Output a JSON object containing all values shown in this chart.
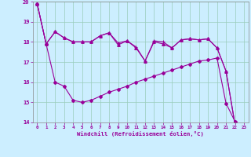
{
  "xlabel": "Windchill (Refroidissement éolien,°C)",
  "background_color": "#cceeff",
  "grid_color": "#99ccbb",
  "line_color": "#990099",
  "xlim": [
    -0.5,
    23.5
  ],
  "ylim": [
    14,
    20
  ],
  "yticks": [
    14,
    15,
    16,
    17,
    18,
    19,
    20
  ],
  "xticks": [
    0,
    1,
    2,
    3,
    4,
    5,
    6,
    7,
    8,
    9,
    10,
    11,
    12,
    13,
    14,
    15,
    16,
    17,
    18,
    19,
    20,
    21,
    22,
    23
  ],
  "series1_x": [
    0,
    1,
    2,
    3,
    4,
    5,
    6,
    7,
    8,
    9,
    10,
    11,
    12,
    13,
    14,
    15,
    16,
    17,
    18,
    19,
    20,
    21,
    22,
    23
  ],
  "series1_y": [
    19.9,
    17.9,
    18.5,
    18.2,
    18.0,
    18.0,
    18.0,
    18.3,
    18.45,
    17.95,
    18.05,
    17.75,
    17.05,
    18.05,
    18.0,
    17.7,
    18.1,
    18.15,
    18.1,
    18.15,
    17.7,
    16.55,
    13.9,
    13.7
  ],
  "series2_x": [
    0,
    1,
    2,
    3,
    4,
    5,
    6,
    7,
    8,
    9,
    10,
    11,
    12,
    13,
    14,
    15,
    16,
    17,
    18,
    19,
    20,
    21,
    22,
    23
  ],
  "series2_y": [
    19.9,
    17.9,
    18.5,
    18.2,
    18.0,
    18.0,
    18.0,
    18.3,
    18.45,
    17.85,
    18.05,
    17.7,
    17.05,
    18.0,
    17.9,
    17.7,
    18.1,
    18.15,
    18.1,
    18.15,
    17.7,
    16.55,
    13.9,
    13.7
  ],
  "series3_x": [
    0,
    1,
    2,
    3,
    4,
    5,
    6,
    7,
    8,
    9,
    10,
    11,
    12,
    13,
    14,
    15,
    16,
    17,
    18,
    19,
    20,
    21,
    22,
    23
  ],
  "series3_y": [
    19.9,
    17.9,
    16.0,
    15.8,
    15.1,
    15.0,
    15.1,
    15.3,
    15.5,
    15.65,
    15.8,
    16.0,
    16.15,
    16.3,
    16.45,
    16.6,
    16.75,
    16.9,
    17.05,
    17.1,
    17.2,
    14.95,
    14.05,
    13.7
  ]
}
